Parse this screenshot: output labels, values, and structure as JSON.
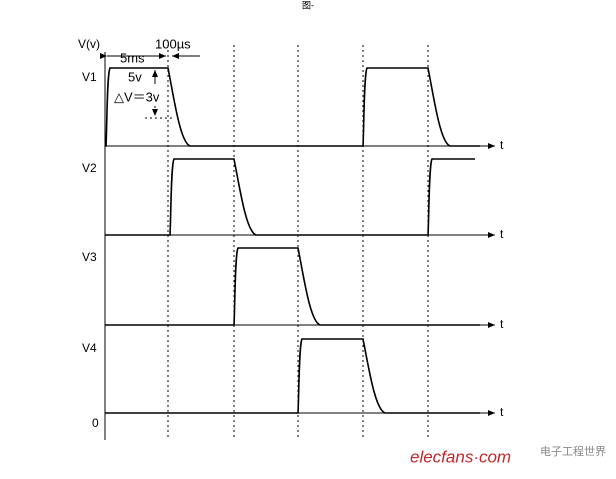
{
  "figure_mark": "图-",
  "axis_label": "V(v)",
  "annotations": {
    "period": "5ms",
    "delay": "100µs",
    "amplitude": "5v",
    "delta": "△V＝3v"
  },
  "zero": "0",
  "channels": [
    {
      "label": "V1",
      "axis": "t"
    },
    {
      "label": "V2",
      "axis": "t"
    },
    {
      "label": "V3",
      "axis": "t"
    },
    {
      "label": "V4",
      "axis": "t"
    }
  ],
  "watermark": {
    "site": "elecfans·com",
    "brand": "电子工程世界"
  }
}
